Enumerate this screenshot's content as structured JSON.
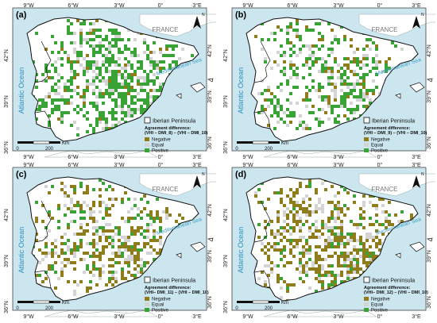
{
  "figure": {
    "lat_ticks": [
      "42°N",
      "39°N",
      "36°N"
    ],
    "lon_ticks": [
      "9°W",
      "6°W",
      "3°W",
      "0°",
      "3°E"
    ],
    "labels": {
      "france": "FRANCE",
      "atlantic": "Atlantic Ocean",
      "mediterranean": "Mediterranean Sea",
      "north": "N"
    },
    "scale_bar": {
      "zero": "0",
      "max": "200",
      "unit": "Km"
    },
    "legend": {
      "boundary_label": "Iberian Peninsula",
      "title": "Agreement difference:",
      "negative": "Negative",
      "equal": "Equal",
      "positive": "Positive"
    },
    "colors": {
      "sea": "#cbe6ef",
      "land": "#ffffff",
      "negative": "#8f7d1c",
      "equal": "#d4d4d4",
      "positive": "#3aa335"
    },
    "icons": [
      "north-arrow-icon"
    ],
    "panels": [
      {
        "letter": "(a)",
        "formula": "(VHI – DMI_8) – (VHI – DMI_10)",
        "balance": 0.88,
        "density": 1.0
      },
      {
        "letter": "(b)",
        "formula": "(VHI – DMI_9) – (VHI – DMI_10)",
        "balance": 0.78,
        "density": 0.8
      },
      {
        "letter": "(c)",
        "formula": "(VHI– DMI_11) – (VHI – DMI_10)",
        "balance": 0.32,
        "density": 0.8
      },
      {
        "letter": "(d)",
        "formula": "(VHI– DMI_12) – (VHI – DMI_10)",
        "balance": 0.22,
        "density": 1.0
      }
    ]
  }
}
